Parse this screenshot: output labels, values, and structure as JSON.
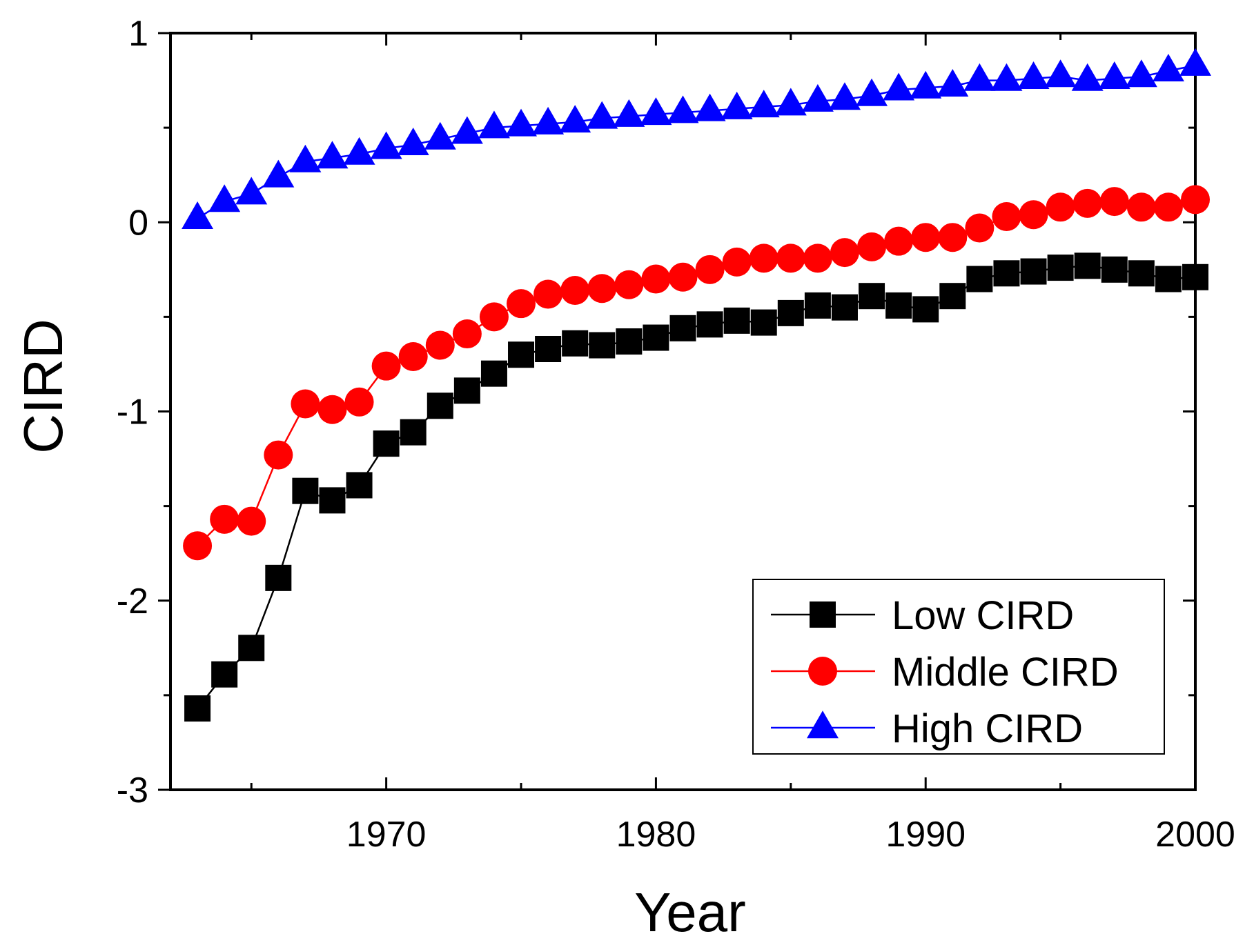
{
  "chart_data": {
    "type": "line",
    "xlabel": "Year",
    "ylabel": "CIRD",
    "xlim": [
      1962,
      2000
    ],
    "ylim": [
      -3,
      1
    ],
    "x_ticks": [
      1970,
      1980,
      1990,
      2000
    ],
    "y_ticks": [
      1,
      0,
      -1,
      -2,
      -3
    ],
    "x_tick_labels": [
      "1970",
      "1980",
      "1990",
      "2000"
    ],
    "y_tick_labels": [
      "1",
      "0",
      "-1",
      "-2",
      "-3"
    ],
    "grid": false,
    "legend_position": "bottom-right",
    "x": [
      1963,
      1964,
      1965,
      1966,
      1967,
      1968,
      1969,
      1970,
      1971,
      1972,
      1973,
      1974,
      1975,
      1976,
      1977,
      1978,
      1979,
      1980,
      1981,
      1982,
      1983,
      1984,
      1985,
      1986,
      1987,
      1988,
      1989,
      1990,
      1991,
      1992,
      1993,
      1994,
      1995,
      1996,
      1997,
      1998,
      1999,
      2000
    ],
    "series": [
      {
        "name": "Low CIRD",
        "color": "#000000",
        "marker": "square",
        "values": [
          -2.57,
          -2.39,
          -2.25,
          -1.88,
          -1.42,
          -1.47,
          -1.39,
          -1.17,
          -1.11,
          -0.97,
          -0.89,
          -0.8,
          -0.7,
          -0.67,
          -0.64,
          -0.65,
          -0.63,
          -0.61,
          -0.56,
          -0.54,
          -0.52,
          -0.53,
          -0.48,
          -0.44,
          -0.45,
          -0.39,
          -0.44,
          -0.46,
          -0.39,
          -0.3,
          -0.27,
          -0.26,
          -0.24,
          -0.23,
          -0.25,
          -0.27,
          -0.3,
          -0.29
        ]
      },
      {
        "name": "Middle CIRD",
        "color": "#ff0000",
        "marker": "circle",
        "values": [
          -1.71,
          -1.57,
          -1.58,
          -1.23,
          -0.96,
          -0.99,
          -0.95,
          -0.76,
          -0.71,
          -0.65,
          -0.59,
          -0.5,
          -0.43,
          -0.38,
          -0.36,
          -0.35,
          -0.33,
          -0.3,
          -0.29,
          -0.25,
          -0.21,
          -0.19,
          -0.19,
          -0.19,
          -0.16,
          -0.13,
          -0.1,
          -0.08,
          -0.08,
          -0.03,
          0.03,
          0.04,
          0.08,
          0.1,
          0.11,
          0.08,
          0.08,
          0.12
        ]
      },
      {
        "name": "High CIRD",
        "color": "#0000ff",
        "marker": "triangle",
        "values": [
          0.02,
          0.11,
          0.15,
          0.24,
          0.32,
          0.34,
          0.36,
          0.39,
          0.41,
          0.44,
          0.47,
          0.5,
          0.51,
          0.52,
          0.53,
          0.55,
          0.56,
          0.57,
          0.58,
          0.59,
          0.6,
          0.61,
          0.62,
          0.64,
          0.65,
          0.67,
          0.7,
          0.71,
          0.72,
          0.75,
          0.75,
          0.76,
          0.77,
          0.75,
          0.76,
          0.77,
          0.8,
          0.83
        ]
      }
    ]
  }
}
